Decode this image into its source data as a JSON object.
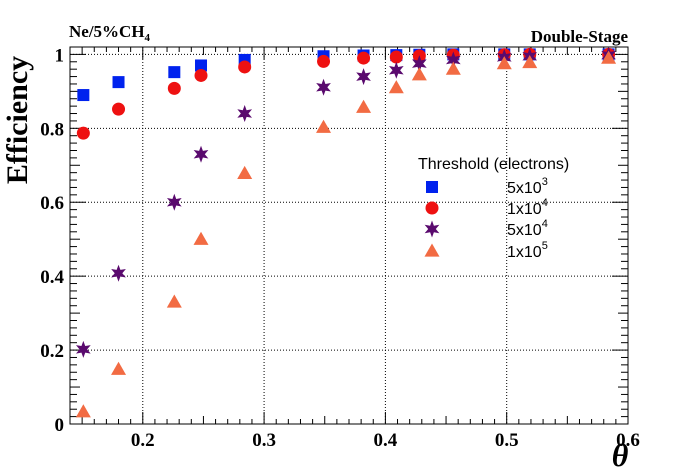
{
  "chart_data": {
    "type": "scatter",
    "corner_left": {
      "base": "Ne/5%CH",
      "sub": "4"
    },
    "corner_right": "Double-Stage",
    "xlabel": "θ",
    "ylabel": "Efficiency",
    "xlim": [
      0.14,
      0.6
    ],
    "ylim": [
      0,
      1.02
    ],
    "xticks": [
      0.2,
      0.3,
      0.4,
      0.5,
      0.6
    ],
    "xtick_labels": [
      "0.2",
      "0.3",
      "0.4",
      "0.5",
      "0.6"
    ],
    "yticks": [
      0,
      0.2,
      0.4,
      0.6,
      0.8,
      1
    ],
    "ytick_labels": [
      "0",
      "0.2",
      "0.4",
      "0.6",
      "0.8",
      "1"
    ],
    "grid": true,
    "legend": {
      "title": "Threshold (electrons)",
      "placement": "center-right"
    },
    "series": [
      {
        "name": "5x10^3",
        "label_base": "5x10",
        "label_exp": "3",
        "marker": "square",
        "color": "#0022ee",
        "x": [
          0.151,
          0.18,
          0.226,
          0.248,
          0.284,
          0.349,
          0.382,
          0.409,
          0.428,
          0.456,
          0.498,
          0.519,
          0.584
        ],
        "y": [
          0.89,
          0.925,
          0.952,
          0.97,
          0.985,
          0.995,
          0.997,
          0.998,
          0.999,
          1.0,
          1.0,
          1.0,
          1.0
        ]
      },
      {
        "name": "1x10^4",
        "label_base": "1x10",
        "label_exp": "4",
        "marker": "circle",
        "color": "#ee1111",
        "x": [
          0.151,
          0.18,
          0.226,
          0.248,
          0.284,
          0.349,
          0.382,
          0.409,
          0.428,
          0.456,
          0.498,
          0.519,
          0.584
        ],
        "y": [
          0.787,
          0.852,
          0.908,
          0.943,
          0.966,
          0.981,
          0.99,
          0.993,
          0.996,
          0.998,
          0.999,
          1.0,
          1.0
        ]
      },
      {
        "name": "5x10^4",
        "label_base": "5x10",
        "label_exp": "4",
        "marker": "star",
        "color": "#5a0a6e",
        "x": [
          0.151,
          0.18,
          0.226,
          0.248,
          0.284,
          0.349,
          0.382,
          0.409,
          0.428,
          0.456,
          0.498,
          0.519,
          0.584
        ],
        "y": [
          0.202,
          0.408,
          0.6,
          0.73,
          0.84,
          0.911,
          0.94,
          0.957,
          0.975,
          0.985,
          0.992,
          0.995,
          0.998
        ]
      },
      {
        "name": "1x10^5",
        "label_base": "1x10",
        "label_exp": "5",
        "marker": "triangle",
        "color": "#f26b43",
        "x": [
          0.151,
          0.18,
          0.226,
          0.248,
          0.284,
          0.349,
          0.382,
          0.409,
          0.428,
          0.456,
          0.498,
          0.519,
          0.584
        ],
        "y": [
          0.033,
          0.148,
          0.33,
          0.5,
          0.678,
          0.803,
          0.857,
          0.91,
          0.945,
          0.96,
          0.975,
          0.978,
          0.99
        ]
      }
    ]
  }
}
